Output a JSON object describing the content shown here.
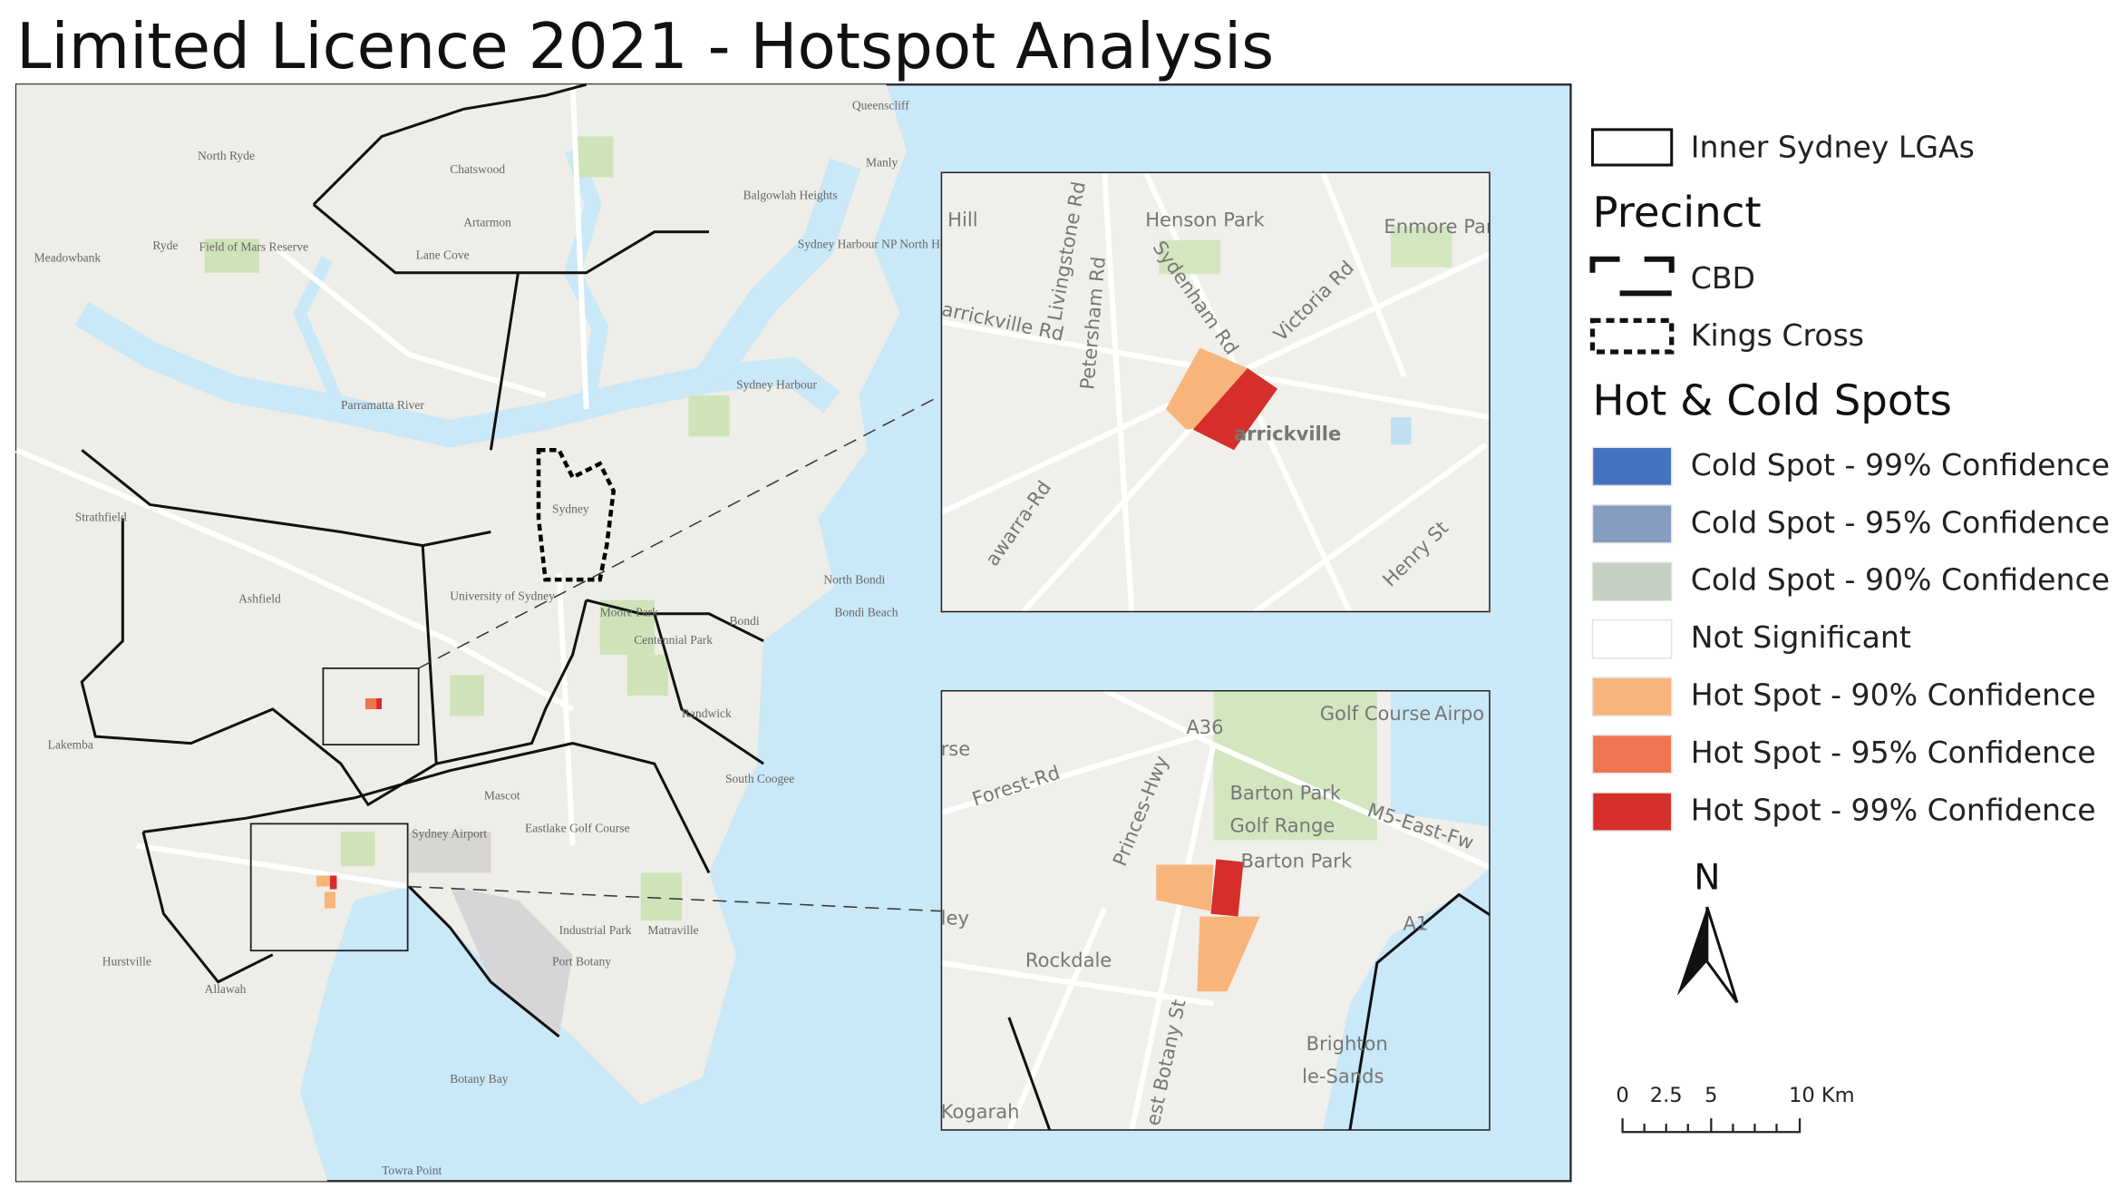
{
  "title": "Limited Licence 2021 - Hotspot Analysis",
  "legend": {
    "boundary": "Inner Sydney LGAs",
    "precinct_heading": "Precinct",
    "precinct": [
      "CBD",
      "Kings Cross"
    ],
    "hotspot_heading": "Hot & Cold Spots",
    "hotspot": [
      {
        "label": "Cold Spot - 99% Confidence",
        "color": "#4472c0"
      },
      {
        "label": "Cold Spot - 95% Confidence",
        "color": "#849cc0"
      },
      {
        "label": "Cold Spot - 90% Confidence",
        "color": "#c5cfc3"
      },
      {
        "label": "Not Significant",
        "color": "#ffffff"
      },
      {
        "label": "Hot Spot - 90% Confidence",
        "color": "#f7b57c"
      },
      {
        "label": "Hot Spot - 95% Confidence",
        "color": "#ee7550"
      },
      {
        "label": "Hot Spot - 99% Confidence",
        "color": "#d62f2b"
      }
    ]
  },
  "north": "N",
  "scale_bar": [
    "0",
    "2.5",
    "5",
    "10 Km"
  ],
  "map_labels": [
    "Queenscliff",
    "North Ryde",
    "Manly",
    "Chatswood",
    "Balgowlah Heights",
    "Ryde",
    "Artarmon",
    "Meadowbank",
    "Field of Mars Reserve",
    "Lane Cove",
    "Sydney Harbour NP North Head",
    "Parramatta River",
    "Sydney Harbour",
    "Strathfield",
    "Ashfield",
    "Sydney",
    "University of Sydney",
    "Moore Park",
    "Centennial Park",
    "North Bondi",
    "Bondi Beach",
    "Bondi",
    "Lakemba",
    "Randwick",
    "Mascot",
    "Sydney Airport",
    "Eastlake Golf Course",
    "South Coogee",
    "Hurstville",
    "Allawah",
    "Botany Bay",
    "Towra Point",
    "Port Botany",
    "Matraville",
    "Industrial Park"
  ],
  "inset_1": [
    "Hill",
    "Henson Park",
    "Enmore Park",
    "Livingstone Rd",
    "Petersham Rd",
    "Sydenham Rd",
    "Victoria Rd",
    "arrickville Rd",
    "arrickville",
    "awarra-Rd",
    "Henry St"
  ],
  "inset_2": [
    "Forest-Rd",
    "A36",
    "Golf Course",
    "Barton Park",
    "Golf Range",
    "M5-East-Fw",
    "Princes-Hwy",
    "Barton Park",
    "Rockdale",
    "A1",
    "Brighton",
    "le-Sands",
    "Kogarah",
    "est Botany St",
    "ley",
    "rse",
    "Airpo"
  ]
}
